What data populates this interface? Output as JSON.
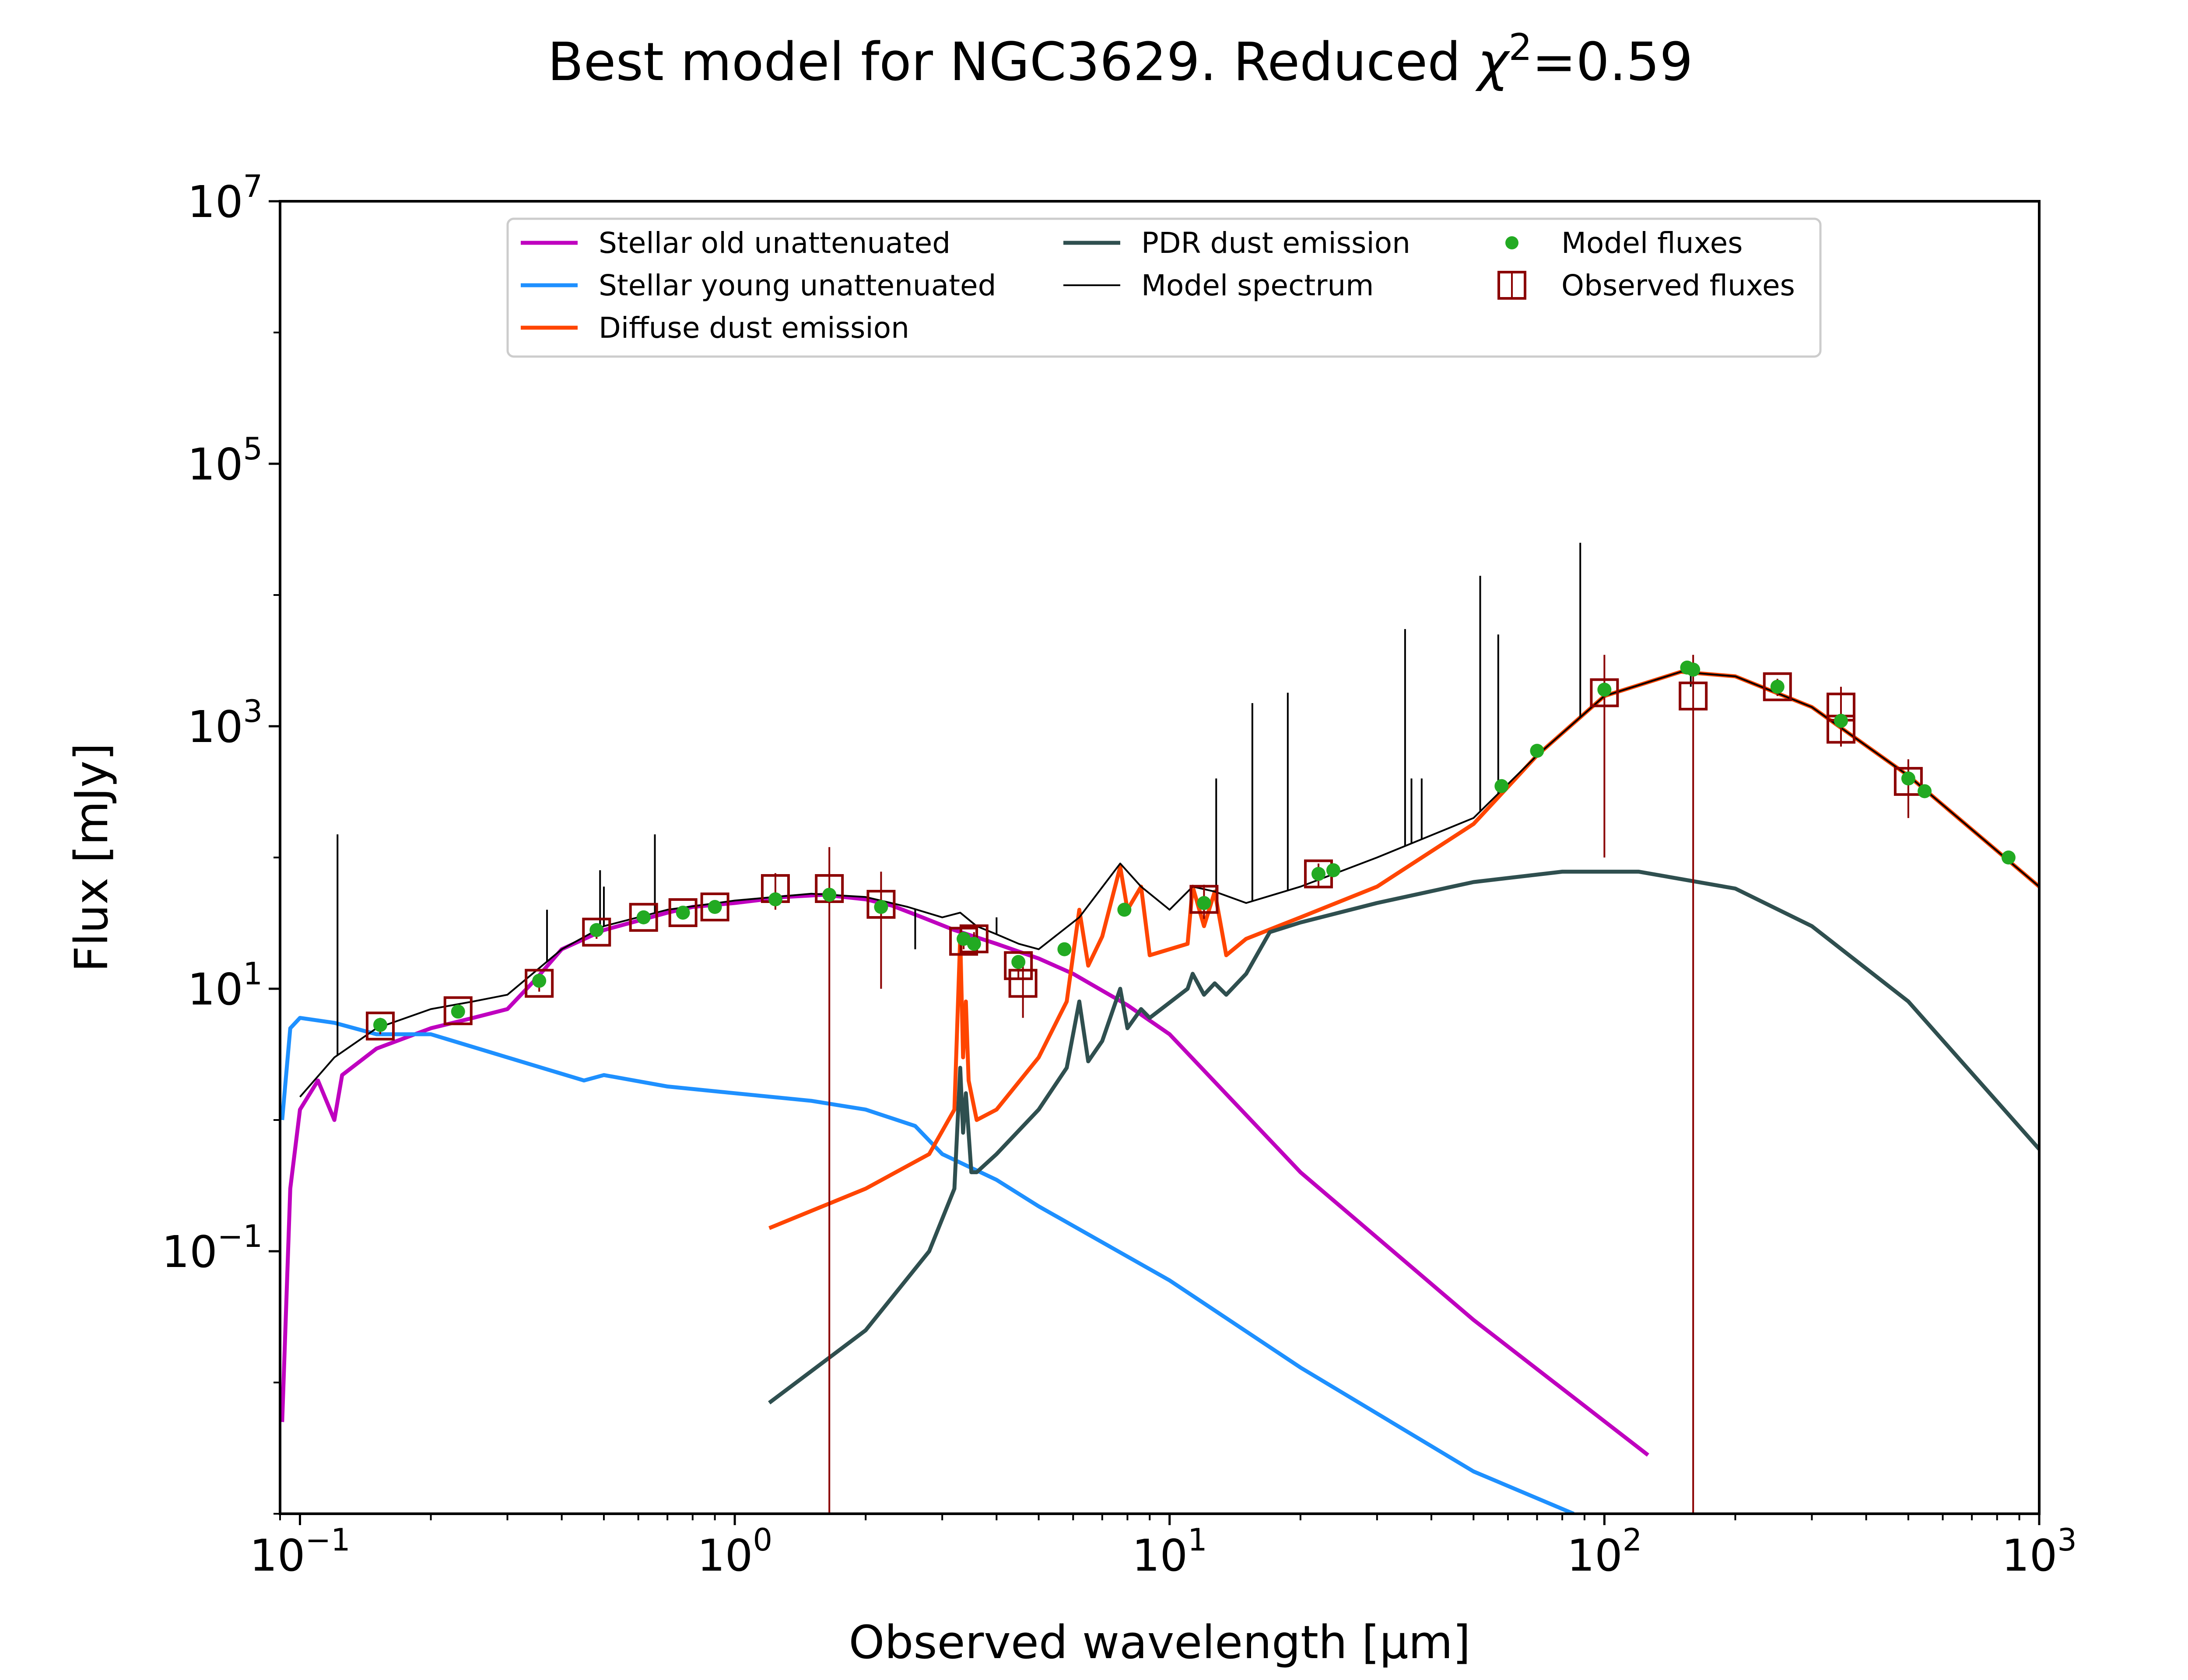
{
  "chart_data": {
    "type": "line",
    "title": "Best model for NGC3629. Reduced χ²=0.59",
    "title_parts": [
      "Best model for NGC3629. Reduced ",
      "χ",
      "2",
      "=0.59"
    ],
    "xlabel": "Observed wavelength [μm]",
    "ylabel": "Flux [mJy]",
    "xscale": "log",
    "yscale": "log",
    "xlim": [
      0.09,
      1000
    ],
    "ylim": [
      0.001,
      10000000
    ],
    "x_ticks": [
      {
        "value": 0.1,
        "base": "10",
        "exp": "−1"
      },
      {
        "value": 1,
        "base": "10",
        "exp": "0"
      },
      {
        "value": 10,
        "base": "10",
        "exp": "1"
      },
      {
        "value": 100,
        "base": "10",
        "exp": "2"
      },
      {
        "value": 1000,
        "base": "10",
        "exp": "3"
      }
    ],
    "y_ticks": [
      {
        "value": 0.1,
        "base": "10",
        "exp": "−1"
      },
      {
        "value": 10,
        "base": "10",
        "exp": "1"
      },
      {
        "value": 1000,
        "base": "10",
        "exp": "3"
      },
      {
        "value": 100000,
        "base": "10",
        "exp": "5"
      },
      {
        "value": 10000000,
        "base": "10",
        "exp": "7"
      }
    ],
    "grid": false,
    "legend": {
      "placement": "top-center",
      "columns": [
        [
          "Stellar old unattenuated",
          "Stellar young unattenuated",
          "Diffuse dust emission"
        ],
        [
          "PDR dust emission",
          "Model spectrum"
        ],
        [
          "Model fluxes",
          "Observed fluxes"
        ]
      ]
    },
    "series": [
      {
        "name": "Stellar old unattenuated",
        "color": "#bf00bf",
        "points": [
          [
            0.091,
            0.005
          ],
          [
            0.095,
            0.3
          ],
          [
            0.1,
            1.2
          ],
          [
            0.11,
            2.0
          ],
          [
            0.12,
            1.0
          ],
          [
            0.125,
            2.2
          ],
          [
            0.15,
            3.5
          ],
          [
            0.2,
            5
          ],
          [
            0.25,
            6
          ],
          [
            0.3,
            7
          ],
          [
            0.35,
            12
          ],
          [
            0.4,
            20
          ],
          [
            0.5,
            28
          ],
          [
            0.6,
            33
          ],
          [
            0.7,
            38
          ],
          [
            0.8,
            42
          ],
          [
            1.0,
            45
          ],
          [
            1.3,
            50
          ],
          [
            1.6,
            52
          ],
          [
            2.0,
            48
          ],
          [
            2.3,
            43
          ],
          [
            2.7,
            35
          ],
          [
            3.2,
            28
          ],
          [
            4.0,
            22
          ],
          [
            5.0,
            17
          ],
          [
            6.0,
            13
          ],
          [
            8.0,
            7.5
          ],
          [
            10.0,
            4.5
          ],
          [
            20.0,
            0.4
          ],
          [
            50.0,
            0.03
          ],
          [
            126,
            0.0028
          ]
        ]
      },
      {
        "name": "Stellar young unattenuated",
        "color": "#1e90ff",
        "points": [
          [
            0.091,
            1.0
          ],
          [
            0.095,
            5.0
          ],
          [
            0.1,
            6
          ],
          [
            0.12,
            5.5
          ],
          [
            0.15,
            4.5
          ],
          [
            0.2,
            4.5
          ],
          [
            0.3,
            3.0
          ],
          [
            0.45,
            2.0
          ],
          [
            0.5,
            2.2
          ],
          [
            0.7,
            1.8
          ],
          [
            1.0,
            1.6
          ],
          [
            1.5,
            1.4
          ],
          [
            2.0,
            1.2
          ],
          [
            2.6,
            0.9
          ],
          [
            3.0,
            0.55
          ],
          [
            4.0,
            0.35
          ],
          [
            5.0,
            0.22
          ],
          [
            10,
            0.06
          ],
          [
            20,
            0.013
          ],
          [
            50,
            0.0021
          ],
          [
            85,
            0.001
          ]
        ]
      },
      {
        "name": "Diffuse dust emission",
        "color": "#ff4500",
        "points": [
          [
            1.2,
            0.15
          ],
          [
            2.0,
            0.3
          ],
          [
            2.8,
            0.55
          ],
          [
            3.2,
            1.2
          ],
          [
            3.3,
            25
          ],
          [
            3.35,
            3
          ],
          [
            3.4,
            8
          ],
          [
            3.45,
            2
          ],
          [
            3.6,
            1.0
          ],
          [
            4.0,
            1.2
          ],
          [
            5.0,
            3.0
          ],
          [
            5.8,
            8
          ],
          [
            6.2,
            40
          ],
          [
            6.5,
            15
          ],
          [
            7.0,
            25
          ],
          [
            7.7,
            85
          ],
          [
            8.0,
            40
          ],
          [
            8.6,
            60
          ],
          [
            9.0,
            18
          ],
          [
            11.0,
            22
          ],
          [
            11.3,
            60
          ],
          [
            12.0,
            30
          ],
          [
            12.7,
            55
          ],
          [
            13.5,
            18
          ],
          [
            15,
            24
          ],
          [
            20,
            35
          ],
          [
            30,
            60
          ],
          [
            50,
            180
          ],
          [
            70,
            600
          ],
          [
            100,
            1700
          ],
          [
            150,
            2600
          ],
          [
            200,
            2400
          ],
          [
            300,
            1400
          ],
          [
            500,
            420
          ],
          [
            1000,
            60
          ]
        ]
      },
      {
        "name": "PDR dust emission",
        "color": "#2f4f4f",
        "points": [
          [
            1.2,
            0.007
          ],
          [
            2.0,
            0.025
          ],
          [
            2.8,
            0.1
          ],
          [
            3.2,
            0.3
          ],
          [
            3.3,
            2.5
          ],
          [
            3.35,
            0.8
          ],
          [
            3.4,
            1.6
          ],
          [
            3.5,
            0.4
          ],
          [
            3.6,
            0.4
          ],
          [
            4.0,
            0.55
          ],
          [
            5.0,
            1.2
          ],
          [
            5.8,
            2.5
          ],
          [
            6.2,
            8
          ],
          [
            6.5,
            2.8
          ],
          [
            7.0,
            4.0
          ],
          [
            7.7,
            10
          ],
          [
            8.0,
            5
          ],
          [
            8.6,
            7
          ],
          [
            9.0,
            6
          ],
          [
            11.0,
            10
          ],
          [
            11.3,
            13
          ],
          [
            12.0,
            9
          ],
          [
            12.7,
            11
          ],
          [
            13.5,
            9
          ],
          [
            15,
            13
          ],
          [
            17,
            27
          ],
          [
            20,
            32
          ],
          [
            30,
            45
          ],
          [
            50,
            65
          ],
          [
            80,
            78
          ],
          [
            120,
            78
          ],
          [
            200,
            58
          ],
          [
            300,
            30
          ],
          [
            500,
            8
          ],
          [
            1000,
            0.6
          ]
        ]
      },
      {
        "name": "Model spectrum",
        "color": "#000000",
        "points": [
          [
            0.1,
            1.5
          ],
          [
            0.12,
            3
          ],
          [
            0.15,
            5
          ],
          [
            0.2,
            7
          ],
          [
            0.25,
            8
          ],
          [
            0.3,
            9
          ],
          [
            0.4,
            20
          ],
          [
            0.5,
            30
          ],
          [
            0.7,
            40
          ],
          [
            1.0,
            47
          ],
          [
            1.5,
            53
          ],
          [
            2.0,
            50
          ],
          [
            2.5,
            42
          ],
          [
            3.0,
            35
          ],
          [
            3.3,
            38
          ],
          [
            3.6,
            30
          ],
          [
            4.0,
            26
          ],
          [
            4.5,
            22
          ],
          [
            5.0,
            20
          ],
          [
            6.2,
            35
          ],
          [
            7.7,
            90
          ],
          [
            8.6,
            60
          ],
          [
            10,
            40
          ],
          [
            11.3,
            60
          ],
          [
            12.7,
            55
          ],
          [
            15,
            45
          ],
          [
            20,
            60
          ],
          [
            30,
            100
          ],
          [
            50,
            200
          ],
          [
            70,
            600
          ],
          [
            100,
            1700
          ],
          [
            150,
            2600
          ],
          [
            200,
            2400
          ],
          [
            300,
            1400
          ],
          [
            500,
            420
          ],
          [
            1000,
            60
          ]
        ]
      }
    ],
    "model_spectrum_lines": [
      {
        "x": 0.122,
        "y": 150
      },
      {
        "x": 0.37,
        "y": 40
      },
      {
        "x": 0.49,
        "y": 80
      },
      {
        "x": 0.5,
        "y": 60
      },
      {
        "x": 0.655,
        "y": 150
      },
      {
        "x": 2.6,
        "y": 20
      },
      {
        "x": 4.0,
        "y": 35
      },
      {
        "x": 7.0,
        "y": 60
      },
      {
        "x": 12.8,
        "y": 400
      },
      {
        "x": 15.5,
        "y": 1500
      },
      {
        "x": 18.7,
        "y": 1800
      },
      {
        "x": 34.8,
        "y": 5500
      },
      {
        "x": 36.0,
        "y": 400
      },
      {
        "x": 38.0,
        "y": 400
      },
      {
        "x": 51.8,
        "y": 14000
      },
      {
        "x": 57.0,
        "y": 5000
      },
      {
        "x": 88.0,
        "y": 25000
      },
      {
        "x": 158.0,
        "y": 2000
      }
    ],
    "model_fluxes": {
      "name": "Model fluxes",
      "color": "#22aa22",
      "points": [
        [
          0.153,
          5.3
        ],
        [
          0.231,
          6.7
        ],
        [
          0.355,
          11.5
        ],
        [
          0.481,
          28
        ],
        [
          0.617,
          35
        ],
        [
          0.76,
          38
        ],
        [
          0.9,
          42
        ],
        [
          1.24,
          48
        ],
        [
          1.65,
          52
        ],
        [
          2.17,
          42
        ],
        [
          3.36,
          24
        ],
        [
          3.55,
          22
        ],
        [
          4.49,
          16
        ],
        [
          5.73,
          20
        ],
        [
          7.87,
          40
        ],
        [
          12.0,
          45
        ],
        [
          22.0,
          75
        ],
        [
          23.8,
          80
        ],
        [
          58,
          350
        ],
        [
          70,
          650
        ],
        [
          100,
          1900
        ],
        [
          155,
          2800
        ],
        [
          160,
          2700
        ],
        [
          250,
          2000
        ],
        [
          350,
          1100
        ],
        [
          500,
          400
        ],
        [
          545,
          320
        ],
        [
          850,
          100
        ]
      ]
    },
    "observed_fluxes": {
      "name": "Observed fluxes",
      "color": "#8b0000",
      "points": [
        {
          "x": 0.153,
          "y": 5.2,
          "ylo": 4.5,
          "yhi": 6.0
        },
        {
          "x": 0.231,
          "y": 6.8,
          "ylo": 6.0,
          "yhi": 7.6
        },
        {
          "x": 0.355,
          "y": 11.0,
          "ylo": 9.5,
          "yhi": 12.5
        },
        {
          "x": 0.481,
          "y": 27,
          "ylo": 24,
          "yhi": 30
        },
        {
          "x": 0.617,
          "y": 35,
          "ylo": 31,
          "yhi": 39
        },
        {
          "x": 0.76,
          "y": 38,
          "ylo": 34,
          "yhi": 42
        },
        {
          "x": 0.9,
          "y": 42,
          "ylo": 38,
          "yhi": 46
        },
        {
          "x": 1.24,
          "y": 58,
          "ylo": 40,
          "yhi": 76
        },
        {
          "x": 1.65,
          "y": 58,
          "ylo": 0.001,
          "yhi": 120
        },
        {
          "x": 2.17,
          "y": 44,
          "ylo": 10,
          "yhi": 78
        },
        {
          "x": 3.36,
          "y": 23,
          "ylo": 20,
          "yhi": 26
        },
        {
          "x": 3.55,
          "y": 24,
          "ylo": 21,
          "yhi": 27
        },
        {
          "x": 4.49,
          "y": 15,
          "ylo": 12,
          "yhi": 18
        },
        {
          "x": 4.6,
          "y": 11,
          "ylo": 6,
          "yhi": 16
        },
        {
          "x": 12.0,
          "y": 48,
          "ylo": 34,
          "yhi": 62
        },
        {
          "x": 22.0,
          "y": 75,
          "ylo": 60,
          "yhi": 90
        },
        {
          "x": 100,
          "y": 1800,
          "ylo": 100,
          "yhi": 3500
        },
        {
          "x": 160,
          "y": 1700,
          "ylo": 0.001,
          "yhi": 3500
        },
        {
          "x": 250,
          "y": 2000,
          "ylo": 1700,
          "yhi": 2300
        },
        {
          "x": 350,
          "y": 1400,
          "ylo": 800,
          "yhi": 2000
        },
        {
          "x": 350,
          "y": 950,
          "ylo": 700,
          "yhi": 1200
        },
        {
          "x": 500,
          "y": 380,
          "ylo": 200,
          "yhi": 560
        }
      ]
    }
  }
}
